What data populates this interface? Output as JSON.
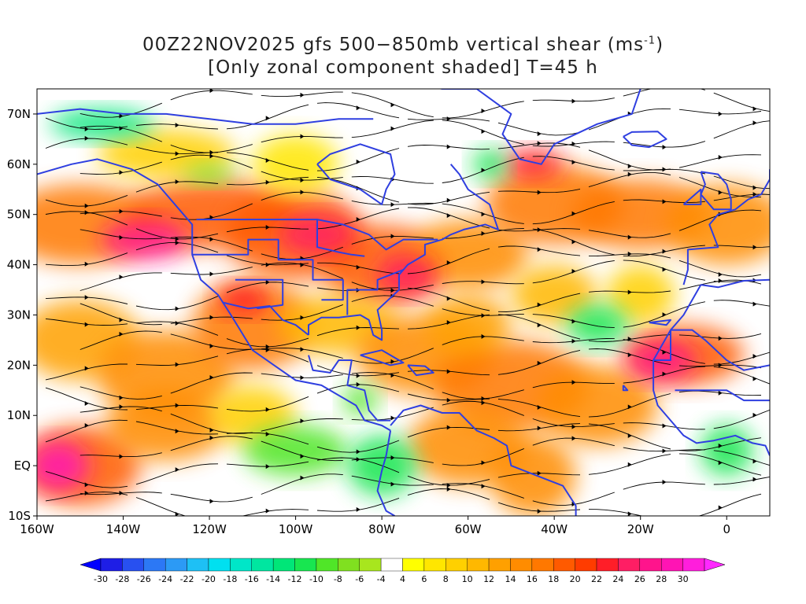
{
  "title": {
    "line1_prefix": "00Z22NOV2025 gfs 500−850mb vertical shear (ms",
    "line1_superscript": "-1",
    "line1_suffix": ")",
    "line2": "[Only zonal component shaded] T=45 h"
  },
  "map": {
    "projection": "lat-lon",
    "lon_range": [
      -160,
      10
    ],
    "lat_range": [
      -10,
      75
    ],
    "y_ticks": [
      {
        "label": "70N",
        "lat": 70
      },
      {
        "label": "60N",
        "lat": 60
      },
      {
        "label": "50N",
        "lat": 50
      },
      {
        "label": "40N",
        "lat": 40
      },
      {
        "label": "30N",
        "lat": 30
      },
      {
        "label": "20N",
        "lat": 20
      },
      {
        "label": "10N",
        "lat": 10
      },
      {
        "label": "EQ",
        "lat": 0
      },
      {
        "label": "10S",
        "lat": -10
      }
    ],
    "x_ticks": [
      {
        "label": "160W",
        "lon": -160
      },
      {
        "label": "140W",
        "lon": -140
      },
      {
        "label": "120W",
        "lon": -120
      },
      {
        "label": "100W",
        "lon": -100
      },
      {
        "label": "80W",
        "lon": -80
      },
      {
        "label": "60W",
        "lon": -60
      },
      {
        "label": "40W",
        "lon": -40
      },
      {
        "label": "20W",
        "lon": -20
      },
      {
        "label": "0",
        "lon": 0
      }
    ],
    "coastline_color": "#2f3fe0",
    "streamline_color": "#000000"
  },
  "colorbar": {
    "labels": [
      "-30",
      "-28",
      "-26",
      "-24",
      "-22",
      "-20",
      "-18",
      "-16",
      "-14",
      "-12",
      "-10",
      "-8",
      "-6",
      "-4",
      "4",
      "6",
      "8",
      "10",
      "12",
      "14",
      "16",
      "18",
      "20",
      "22",
      "24",
      "26",
      "28",
      "30"
    ],
    "colors": [
      "#1e1ee6",
      "#2850f0",
      "#2c78f5",
      "#2c9af5",
      "#1ec0f5",
      "#00e0f0",
      "#00e6c8",
      "#00e6a0",
      "#00e678",
      "#18e650",
      "#50e628",
      "#80e020",
      "#a8e61e",
      "#ffffff",
      "#ffff00",
      "#ffe600",
      "#ffd000",
      "#ffb800",
      "#ffa000",
      "#ff8c00",
      "#ff7800",
      "#ff5a00",
      "#ff3c00",
      "#ff1e28",
      "#ff1e64",
      "#ff148c",
      "#ff14b4",
      "#ff1edc"
    ],
    "left_arrow_color": "#0000ff",
    "right_arrow_color": "#ff28ff"
  },
  "chart_data": {
    "type": "heatmap",
    "title": "00Z22NOV2025 gfs 500-850mb vertical shear (ms-1) [Only zonal component shaded] T=45 h",
    "x_range": [
      -160,
      10
    ],
    "y_range": [
      -10,
      75
    ],
    "xlabel": "",
    "ylabel": "",
    "legend_range": [
      -30,
      30
    ],
    "features": [
      {
        "label": "jet max NE Pacific",
        "lon": -130,
        "lat": 45,
        "value": 26
      },
      {
        "label": "jet max central US",
        "lon": -95,
        "lat": 45,
        "value": 26
      },
      {
        "label": "jet max off NE US",
        "lon": -72,
        "lat": 38,
        "value": 24
      },
      {
        "label": "jet max Saharan",
        "lon": -15,
        "lat": 20,
        "value": 26
      },
      {
        "label": "jet max E Pacific tropics",
        "lon": -155,
        "lat": 0,
        "value": 26
      },
      {
        "label": "easterly shear Caribbean/S America",
        "lon": -90,
        "lat": 2,
        "value": -10
      },
      {
        "label": "easterly shear Arctic Alaska",
        "lon": -150,
        "lat": 68,
        "value": -14
      },
      {
        "label": "easterly shear central Atlantic",
        "lon": -30,
        "lat": 28,
        "value": -12
      },
      {
        "label": "easterly shear W Africa",
        "lon": 0,
        "lat": 3,
        "value": -12
      }
    ]
  }
}
